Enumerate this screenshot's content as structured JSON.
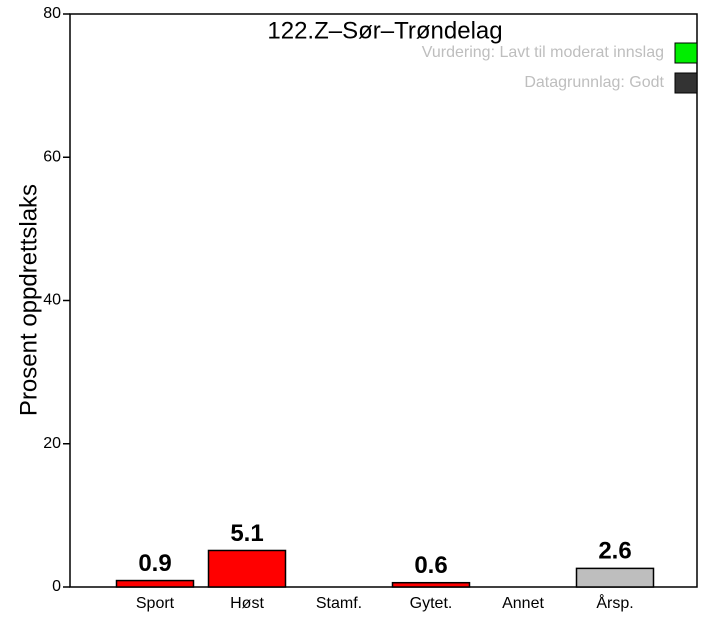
{
  "chart_data": {
    "type": "bar",
    "title": "122.Z–Sør–Trøndelag",
    "ylabel": "Prosent oppdrettslaks",
    "categories": [
      "Sport",
      "Høst",
      "Stamf.",
      "Gytet.",
      "Annet",
      "Årsp."
    ],
    "values": [
      0.9,
      5.1,
      null,
      0.6,
      null,
      2.6
    ],
    "colors": [
      "#ff0000",
      "#ff0000",
      "#ff0000",
      "#ff0000",
      "#ff0000",
      "#bebebe"
    ],
    "ylim": [
      0,
      80
    ],
    "yticks": [
      0,
      20,
      40,
      60,
      80
    ],
    "legend": {
      "position": "top-right",
      "items": [
        {
          "label": "Vurdering: Lavt til moderat innslag",
          "color": "#00ee00"
        },
        {
          "label": "Datagrunnlag: Godt",
          "color": "#333333"
        }
      ]
    }
  }
}
